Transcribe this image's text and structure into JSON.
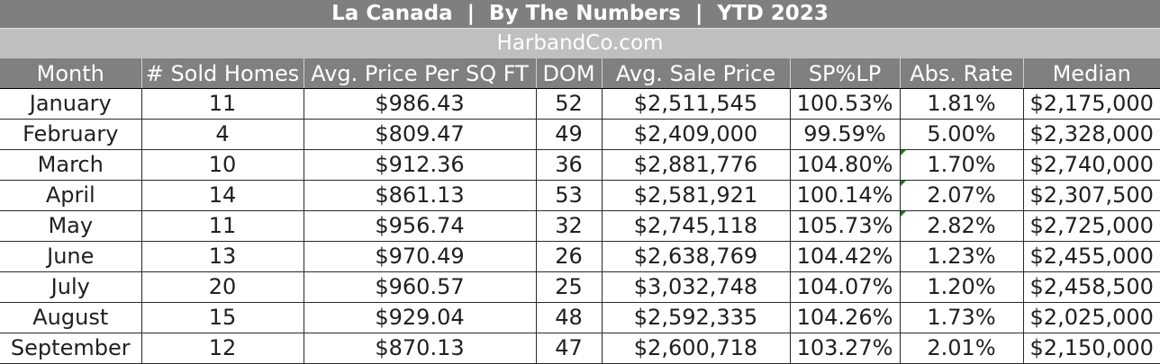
{
  "header": {
    "title": "La Canada  |  By The Numbers  |  YTD 2023",
    "subtitle": "HarbandCo.com"
  },
  "table": {
    "columns": [
      "Month",
      "# Sold Homes",
      "Avg. Price Per SQ FT",
      "DOM",
      "Avg. Sale Price",
      "SP%LP",
      "Abs. Rate",
      "Median"
    ],
    "rows": [
      [
        "January",
        "11",
        "$986.43",
        "52",
        "$2,511,545",
        "100.53%",
        "1.81%",
        "$2,175,000"
      ],
      [
        "February",
        "4",
        "$809.47",
        "49",
        "$2,409,000",
        "99.59%",
        "5.00%",
        "$2,328,000"
      ],
      [
        "March",
        "10",
        "$912.36",
        "36",
        "$2,881,776",
        "104.80%",
        "1.70%",
        "$2,740,000"
      ],
      [
        "April",
        "14",
        "$861.13",
        "53",
        "$2,581,921",
        "100.14%",
        "2.07%",
        "$2,307,500"
      ],
      [
        "May",
        "11",
        "$956.74",
        "32",
        "$2,745,118",
        "105.73%",
        "2.82%",
        "$2,725,000"
      ],
      [
        "June",
        "13",
        "$970.49",
        "26",
        "$2,638,769",
        "104.42%",
        "1.23%",
        "$2,455,000"
      ],
      [
        "July",
        "20",
        "$960.57",
        "25",
        "$3,032,748",
        "104.07%",
        "1.20%",
        "$2,458,500"
      ],
      [
        "August",
        "15",
        "$929.04",
        "48",
        "$2,592,335",
        "104.26%",
        "1.73%",
        "$2,025,000"
      ],
      [
        "September",
        "12",
        "$870.13",
        "47",
        "$2,600,718",
        "103.27%",
        "2.01%",
        "$2,150,000"
      ]
    ],
    "note_indicator_rows": [
      2,
      3,
      4
    ],
    "note_indicator_column": 6
  },
  "colors": {
    "title_bg": "#7f7f7f",
    "subtitle_bg": "#bfbfbf",
    "header_bg": "#808080",
    "note_indicator": "#1f7a1f"
  }
}
